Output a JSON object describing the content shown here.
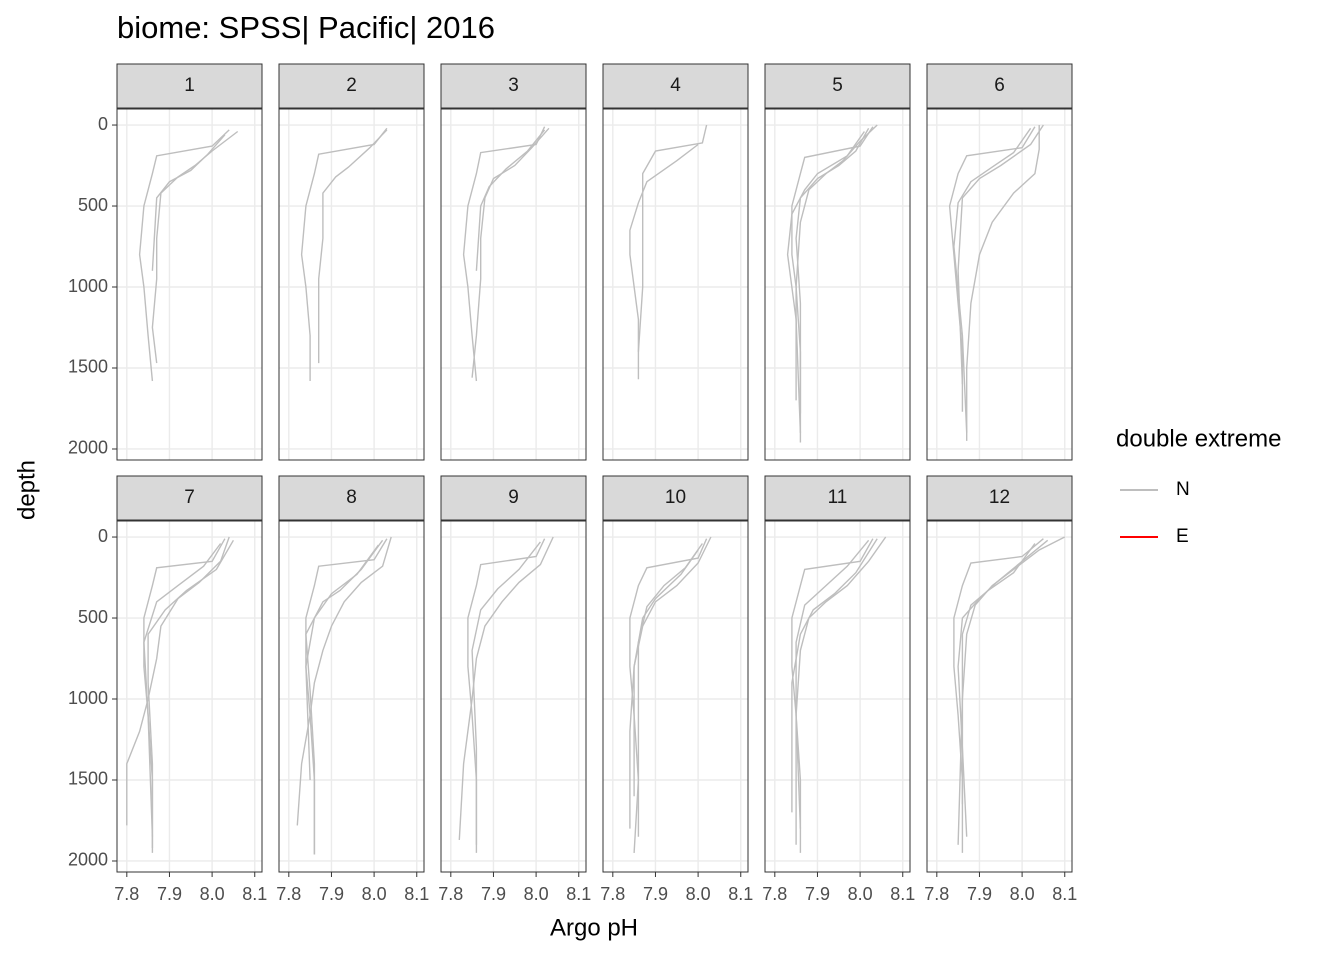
{
  "chart_data": {
    "type": "line",
    "title": "biome: SPSS| Pacific| 2016",
    "x_label": "Argo pH",
    "y_label": "depth",
    "xlim": [
      7.777,
      8.117
    ],
    "xticks": [
      7.8,
      7.9,
      {
        "value": 8,
        "label": "8.0"
      },
      8.1
    ],
    "ylim": [
      2068,
      -99
    ],
    "yticks": [
      0,
      500,
      1000,
      1500,
      2000
    ],
    "y_reversed": true,
    "grid": true,
    "legend": {
      "title": "double extreme",
      "position": "right",
      "entries": [
        {
          "name": "N",
          "color": "#bebebe"
        },
        {
          "name": "E",
          "color": "#ff0000"
        }
      ]
    },
    "facets": [
      {
        "label": "1",
        "profiles": [
          {
            "group": 0,
            "x": [
              8.04,
              8.0,
              7.87,
              7.86,
              7.84,
              7.83,
              7.84,
              7.85,
              7.86
            ],
            "y": [
              30,
              130,
              190,
              300,
              500,
              800,
              1000,
              1300,
              1580
            ]
          },
          {
            "group": 0,
            "x": [
              8.06,
              8.0,
              7.96,
              7.92,
              7.88,
              7.87,
              7.87,
              7.86,
              7.87
            ],
            "y": [
              40,
              160,
              250,
              320,
              420,
              700,
              950,
              1250,
              1470
            ]
          },
          {
            "group": 0,
            "x": [
              8.03,
              7.99,
              7.95,
              7.9,
              7.87,
              7.86
            ],
            "y": [
              60,
              180,
              280,
              350,
              450,
              900
            ]
          }
        ]
      },
      {
        "label": "2",
        "profiles": [
          {
            "group": 0,
            "x": [
              8.03,
              8.0,
              7.87,
              7.86,
              7.84,
              7.83,
              7.84,
              7.85,
              7.85
            ],
            "y": [
              20,
              120,
              180,
              300,
              500,
              800,
              1000,
              1300,
              1580
            ]
          },
          {
            "group": 0,
            "x": [
              8.03,
              7.99,
              7.94,
              7.91,
              7.88,
              7.88,
              7.87,
              7.87
            ],
            "y": [
              30,
              140,
              260,
              320,
              420,
              700,
              950,
              1470
            ]
          }
        ]
      },
      {
        "label": "3",
        "profiles": [
          {
            "group": 0,
            "x": [
              8.02,
              8.0,
              7.87,
              7.86,
              7.84,
              7.83,
              7.84,
              7.85,
              7.86
            ],
            "y": [
              10,
              120,
              170,
              300,
              500,
              800,
              1000,
              1300,
              1580
            ]
          },
          {
            "group": 0,
            "x": [
              8.03,
              7.99,
              7.95,
              7.9,
              7.88,
              7.87,
              7.87,
              7.86,
              7.85
            ],
            "y": [
              20,
              140,
              250,
              330,
              450,
              700,
              950,
              1300,
              1560
            ]
          },
          {
            "group": 0,
            "x": [
              8.02,
              7.98,
              7.93,
              7.89,
              7.87,
              7.86
            ],
            "y": [
              30,
              160,
              270,
              380,
              500,
              900
            ]
          }
        ]
      },
      {
        "label": "4",
        "profiles": [
          {
            "group": 0,
            "x": [
              8.02,
              8.01,
              7.9,
              7.87,
              7.87,
              7.87,
              7.86
            ],
            "y": [
              0,
              110,
              160,
              300,
              700,
              1000,
              1400
            ]
          },
          {
            "group": 0,
            "x": [
              8.0,
              7.95,
              7.88,
              7.86,
              7.84,
              7.84,
              7.86,
              7.86
            ],
            "y": [
              120,
              220,
              350,
              480,
              650,
              800,
              1200,
              1570
            ]
          }
        ]
      },
      {
        "label": "5",
        "profiles": [
          {
            "group": 0,
            "x": [
              8.03,
              8.0,
              7.87,
              7.86,
              7.84,
              7.84,
              7.85,
              7.86,
              7.86
            ],
            "y": [
              10,
              130,
              200,
              300,
              500,
              800,
              1000,
              1400,
              1780
            ]
          },
          {
            "group": 0,
            "x": [
              8.02,
              7.99,
              7.95,
              7.9,
              7.86,
              7.85,
              7.86,
              7.86,
              7.86
            ],
            "y": [
              20,
              160,
              250,
              330,
              450,
              700,
              1100,
              1500,
              1960
            ]
          },
          {
            "group": 0,
            "x": [
              8.04,
              8.0,
              7.96,
              7.92,
              7.88,
              7.86,
              7.85,
              7.85
            ],
            "y": [
              0,
              100,
              220,
              300,
              400,
              600,
              1000,
              1700
            ]
          },
          {
            "group": 0,
            "x": [
              8.01,
              7.97,
              7.9,
              7.87,
              7.84,
              7.83,
              7.85,
              7.86
            ],
            "y": [
              40,
              190,
              300,
              400,
              550,
              800,
              1200,
              1900
            ]
          }
        ]
      },
      {
        "label": "6",
        "profiles": [
          {
            "group": 0,
            "x": [
              8.03,
              8.0,
              7.87,
              7.85,
              7.83,
              7.84,
              7.85,
              7.86,
              7.86
            ],
            "y": [
              10,
              140,
              190,
              300,
              500,
              800,
              1100,
              1400,
              1770
            ]
          },
          {
            "group": 0,
            "x": [
              8.04,
              8.04,
              8.03,
              7.98,
              7.93,
              7.9,
              7.88,
              7.87,
              7.87
            ],
            "y": [
              0,
              150,
              300,
              420,
              600,
              800,
              1100,
              1500,
              1950
            ]
          },
          {
            "group": 0,
            "x": [
              8.02,
              7.98,
              7.93,
              7.88,
              7.85,
              7.84,
              7.86,
              7.87
            ],
            "y": [
              20,
              170,
              260,
              350,
              480,
              750,
              1300,
              1900
            ]
          },
          {
            "group": 0,
            "x": [
              8.05,
              8.02,
              7.95,
              7.9,
              7.86,
              7.85,
              7.86
            ],
            "y": [
              0,
              120,
              250,
              330,
              450,
              900,
              1600
            ]
          }
        ]
      },
      {
        "label": "7",
        "profiles": [
          {
            "group": 0,
            "x": [
              8.03,
              8.0,
              7.87,
              7.86,
              7.84,
              7.84,
              7.85,
              7.86,
              7.86
            ],
            "y": [
              10,
              150,
              190,
              300,
              500,
              800,
              1100,
              1500,
              1920
            ]
          },
          {
            "group": 0,
            "x": [
              8.04,
              8.02,
              7.97,
              7.92,
              7.88,
              7.87,
              7.85,
              7.83,
              7.8,
              7.8
            ],
            "y": [
              0,
              150,
              280,
              380,
              550,
              750,
              1000,
              1200,
              1400,
              1780
            ]
          },
          {
            "group": 0,
            "x": [
              8.05,
              8.01,
              7.94,
              7.89,
              7.85,
              7.85,
              7.86,
              7.86
            ],
            "y": [
              20,
              200,
              330,
              450,
              600,
              900,
              1400,
              1950
            ]
          },
          {
            "group": 0,
            "x": [
              8.02,
              7.98,
              7.92,
              7.87,
              7.84,
              7.85,
              7.86
            ],
            "y": [
              40,
              180,
              300,
              400,
              650,
              1100,
              1850
            ]
          }
        ]
      },
      {
        "label": "8",
        "profiles": [
          {
            "group": 0,
            "x": [
              8.03,
              8.0,
              7.87,
              7.86,
              7.84,
              7.84,
              7.85,
              7.86,
              7.86
            ],
            "y": [
              10,
              140,
              180,
              300,
              500,
              800,
              1100,
              1500,
              1960
            ]
          },
          {
            "group": 0,
            "x": [
              8.04,
              8.02,
              7.97,
              7.93,
              7.9,
              7.88,
              7.86,
              7.85,
              7.83,
              7.82
            ],
            "y": [
              0,
              180,
              280,
              400,
              550,
              700,
              900,
              1100,
              1400,
              1780
            ]
          },
          {
            "group": 0,
            "x": [
              8.02,
              7.97,
              7.92,
              7.88,
              7.84,
              7.85,
              7.86,
              7.86
            ],
            "y": [
              20,
              200,
              330,
              400,
              600,
              950,
              1400,
              1960
            ]
          },
          {
            "group": 0,
            "x": [
              8.01,
              7.96,
              7.9,
              7.86,
              7.84,
              7.85
            ],
            "y": [
              50,
              230,
              350,
              500,
              800,
              1500
            ]
          }
        ]
      },
      {
        "label": "9",
        "profiles": [
          {
            "group": 0,
            "x": [
              8.02,
              8.0,
              7.87,
              7.86,
              7.84,
              7.84,
              7.85,
              7.86,
              7.86
            ],
            "y": [
              10,
              120,
              170,
              300,
              500,
              800,
              1100,
              1500,
              1950
            ]
          },
          {
            "group": 0,
            "x": [
              8.04,
              8.01,
              7.96,
              7.92,
              7.88,
              7.86,
              7.85,
              7.83,
              7.82
            ],
            "y": [
              0,
              170,
              280,
              400,
              550,
              750,
              1000,
              1400,
              1870
            ]
          },
          {
            "group": 0,
            "x": [
              8.01,
              7.96,
              7.91,
              7.87,
              7.85,
              7.86,
              7.86
            ],
            "y": [
              30,
              200,
              320,
              450,
              700,
              1300,
              1900
            ]
          }
        ]
      },
      {
        "label": "10",
        "profiles": [
          {
            "group": 0,
            "x": [
              8.02,
              8.0,
              7.88,
              7.86,
              7.84,
              7.84,
              7.85,
              7.86,
              7.85
            ],
            "y": [
              10,
              130,
              190,
              300,
              500,
              800,
              1100,
              1500,
              1950
            ]
          },
          {
            "group": 0,
            "x": [
              8.03,
              8.0,
              7.95,
              7.9,
              7.87,
              7.85,
              7.84,
              7.84
            ],
            "y": [
              0,
              160,
              300,
              400,
              550,
              800,
              1200,
              1800
            ]
          },
          {
            "group": 0,
            "x": [
              8.01,
              7.97,
              7.92,
              7.88,
              7.86,
              7.86,
              7.86
            ],
            "y": [
              40,
              190,
              300,
              430,
              650,
              1100,
              1850
            ]
          },
          {
            "group": 0,
            "x": [
              8.0,
              7.96,
              7.9,
              7.87,
              7.85,
              7.85
            ],
            "y": [
              80,
              230,
              380,
              500,
              800,
              1600
            ]
          }
        ]
      },
      {
        "label": "11",
        "profiles": [
          {
            "group": 0,
            "x": [
              8.03,
              8.0,
              7.87,
              7.86,
              7.84,
              7.84,
              7.85,
              7.86,
              7.86
            ],
            "y": [
              10,
              150,
              200,
              300,
              500,
              800,
              1100,
              1500,
              1950
            ]
          },
          {
            "group": 0,
            "x": [
              8.06,
              8.02,
              7.97,
              7.92,
              7.88,
              7.86,
              7.85,
              7.85
            ],
            "y": [
              0,
              150,
              300,
              400,
              500,
              700,
              1100,
              1900
            ]
          },
          {
            "group": 0,
            "x": [
              8.02,
              7.97,
              7.92,
              7.87,
              7.85,
              7.85,
              7.86
            ],
            "y": [
              20,
              180,
              300,
              420,
              650,
              1100,
              1800
            ]
          },
          {
            "group": 0,
            "x": [
              8.04,
              7.99,
              7.94,
              7.89,
              7.86,
              7.84,
              7.84
            ],
            "y": [
              10,
              220,
              350,
              450,
              600,
              900,
              1700
            ]
          }
        ]
      },
      {
        "label": "12",
        "profiles": [
          {
            "group": 0,
            "x": [
              8.05,
              8.0,
              7.88,
              7.86,
              7.84,
              7.84,
              7.85,
              7.86,
              7.86
            ],
            "y": [
              10,
              120,
              160,
              300,
              500,
              800,
              1100,
              1500,
              1950
            ]
          },
          {
            "group": 0,
            "x": [
              8.1,
              8.04,
              7.98,
              7.93,
              7.89,
              7.87,
              7.86,
              7.85
            ],
            "y": [
              0,
              80,
              200,
              300,
              420,
              600,
              1000,
              1900
            ]
          },
          {
            "group": 0,
            "x": [
              8.06,
              8.0,
              7.94,
              7.9,
              7.86,
              7.85,
              7.86,
              7.87
            ],
            "y": [
              20,
              150,
              280,
              380,
              500,
              800,
              1300,
              1850
            ]
          },
          {
            "group": 0,
            "x": [
              8.03,
              7.98,
              7.92,
              7.88,
              7.86,
              7.86,
              7.86
            ],
            "y": [
              40,
              220,
              330,
              420,
              600,
              1000,
              1650
            ]
          }
        ]
      }
    ]
  }
}
